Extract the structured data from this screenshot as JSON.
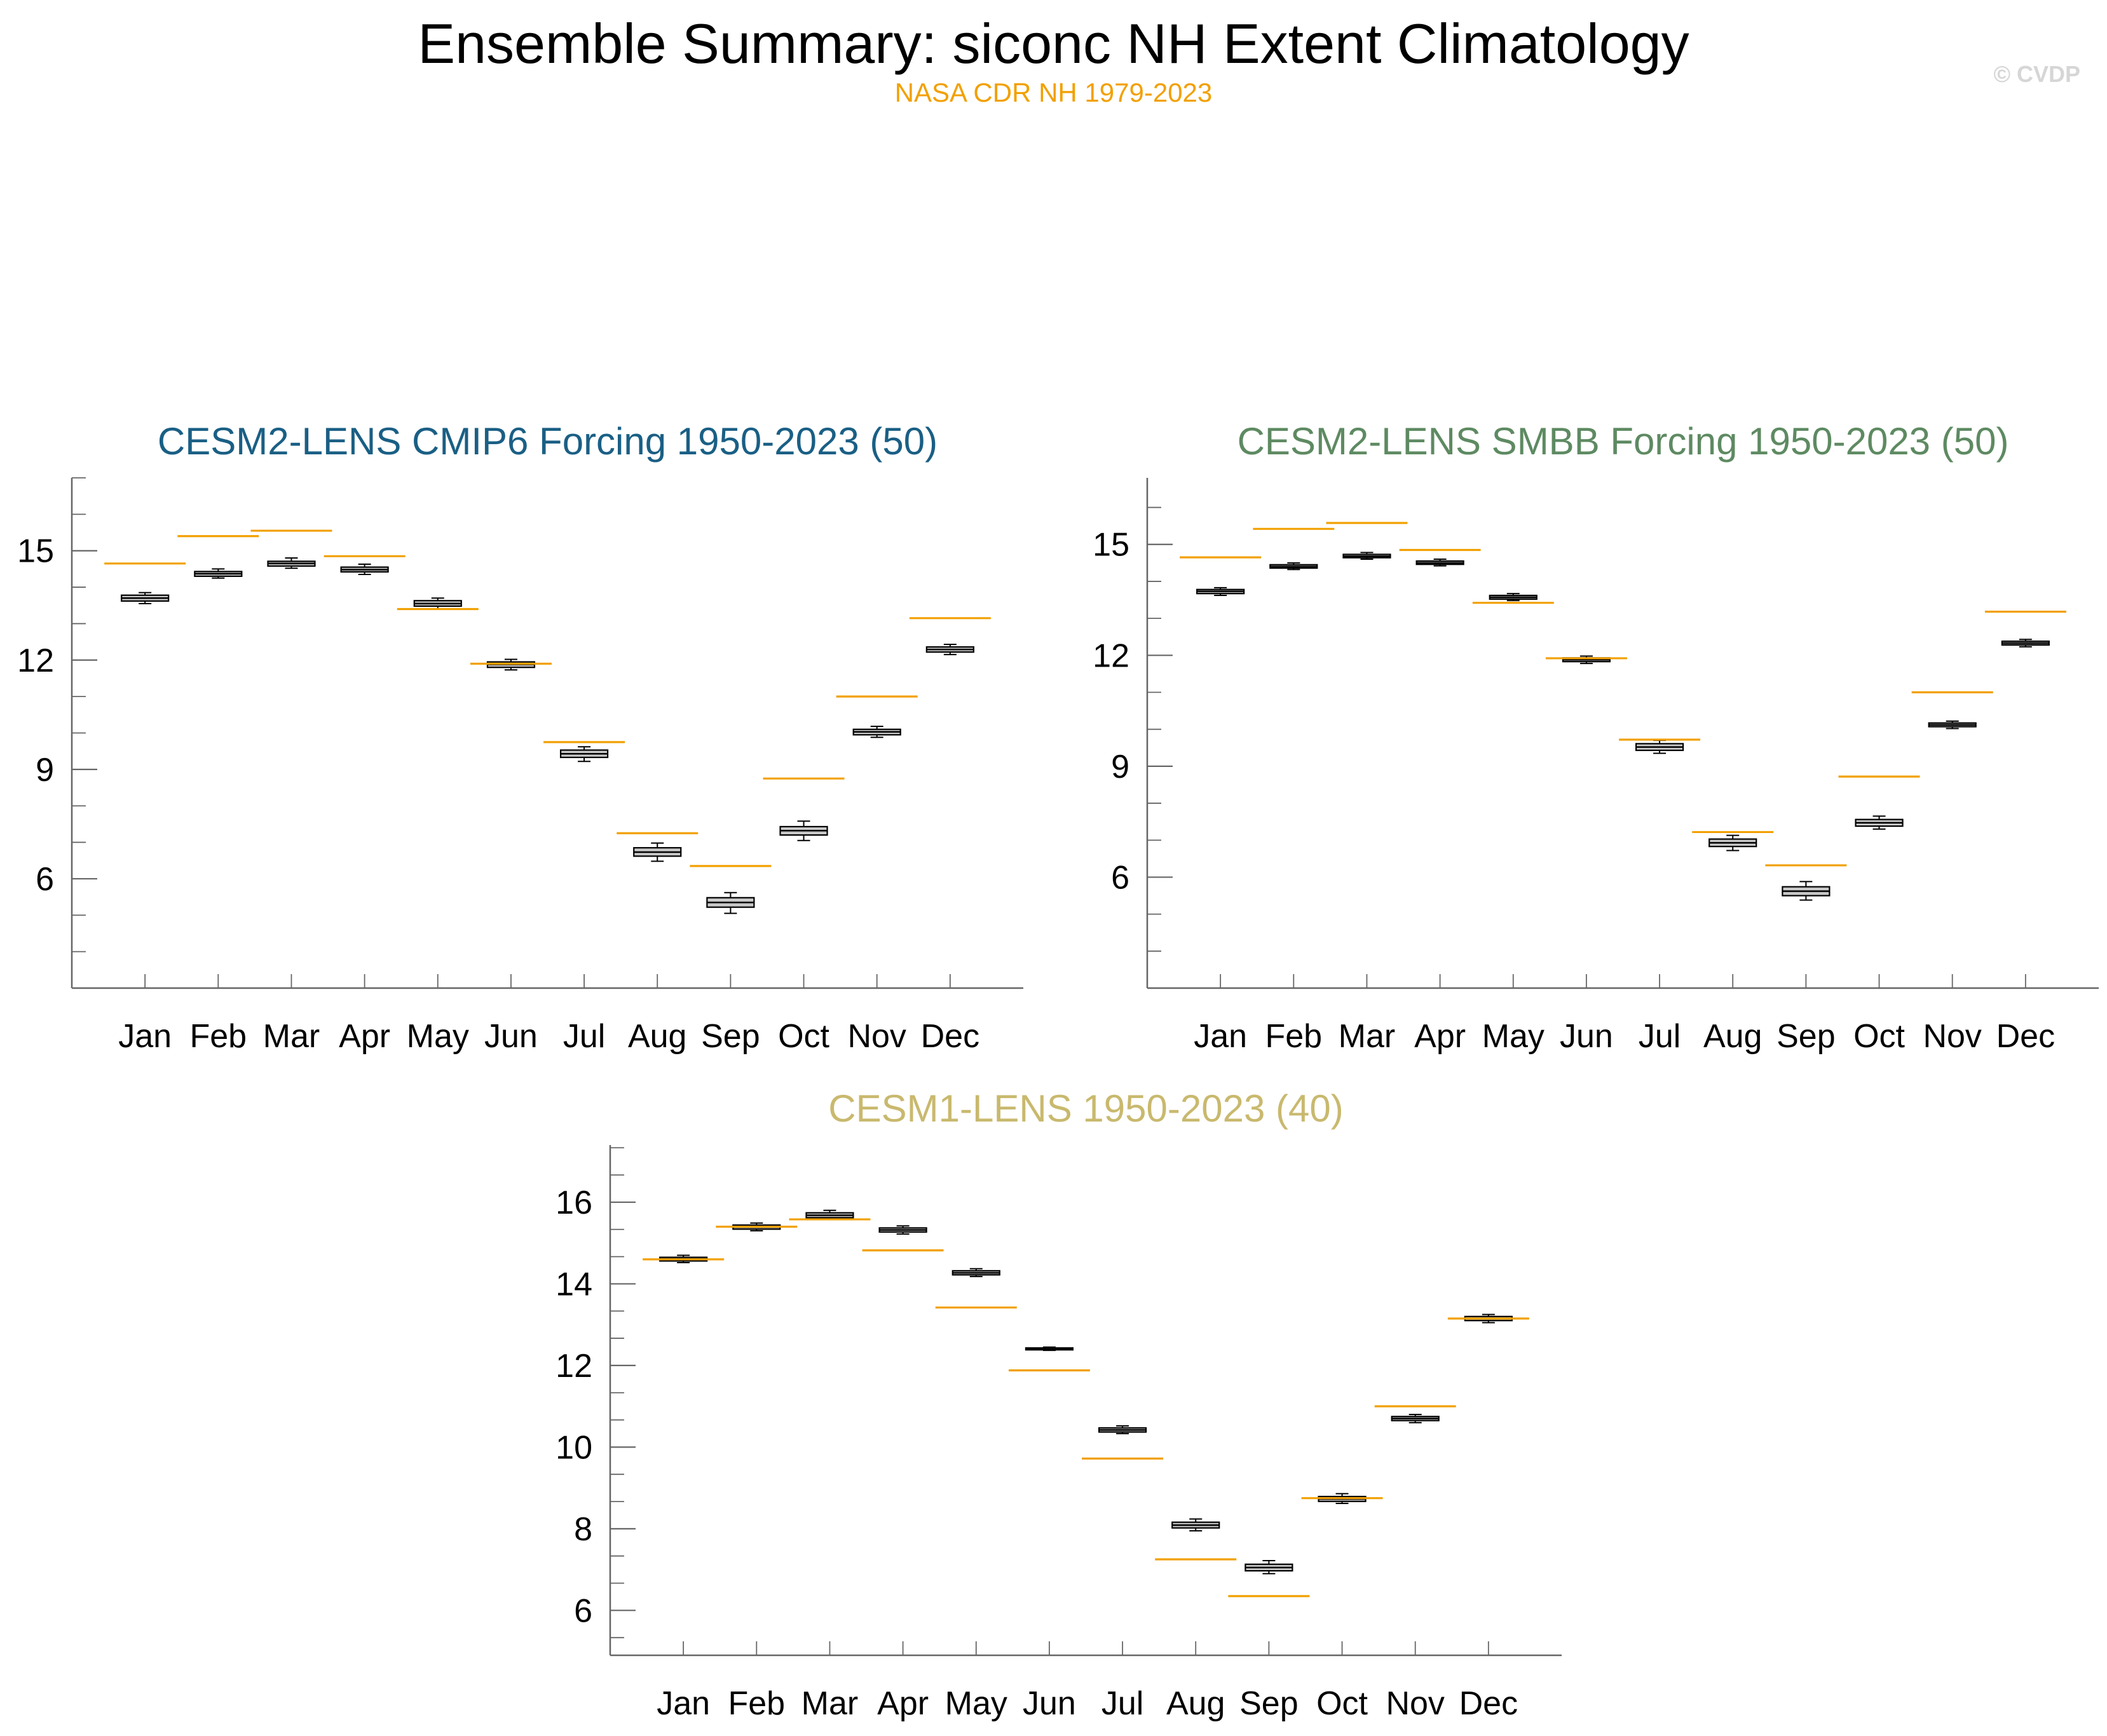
{
  "title": "Ensemble Summary: siconc NH Extent Climatology",
  "subtitle": "NASA CDR NH 1979-2023",
  "watermark": "© CVDP",
  "colors": {
    "reference": "#f2a000",
    "box_fill": "#c8c8c8",
    "axis": "#666666"
  },
  "chart_data": [
    {
      "type": "boxplot",
      "title": "CESM2-LENS CMIP6 Forcing 1950-2023 (50)",
      "title_color": "#1a5f85",
      "categories": [
        "Jan",
        "Feb",
        "Mar",
        "Apr",
        "May",
        "Jun",
        "Jul",
        "Aug",
        "Sep",
        "Oct",
        "Nov",
        "Dec"
      ],
      "y_ticks": [
        6,
        9,
        12,
        15
      ],
      "ylim": [
        3.0,
        17.0
      ],
      "reference_name": "NASA CDR NH 1979-2023",
      "reference": [
        14.65,
        15.4,
        15.55,
        14.85,
        13.4,
        11.9,
        9.75,
        7.25,
        6.35,
        8.75,
        11.0,
        13.15
      ],
      "boxes": [
        {
          "min": 13.55,
          "q1": 13.62,
          "median": 13.7,
          "q3": 13.78,
          "max": 13.85
        },
        {
          "min": 14.25,
          "q1": 14.3,
          "median": 14.37,
          "q3": 14.43,
          "max": 14.5
        },
        {
          "min": 14.52,
          "q1": 14.58,
          "median": 14.65,
          "q3": 14.71,
          "max": 14.8
        },
        {
          "min": 14.35,
          "q1": 14.42,
          "median": 14.48,
          "q3": 14.55,
          "max": 14.63
        },
        {
          "min": 13.4,
          "q1": 13.48,
          "median": 13.55,
          "q3": 13.63,
          "max": 13.7
        },
        {
          "min": 11.73,
          "q1": 11.8,
          "median": 11.88,
          "q3": 11.95,
          "max": 12.02
        },
        {
          "min": 9.22,
          "q1": 9.33,
          "median": 9.43,
          "q3": 9.53,
          "max": 9.62
        },
        {
          "min": 6.48,
          "q1": 6.62,
          "median": 6.73,
          "q3": 6.85,
          "max": 6.98
        },
        {
          "min": 5.05,
          "q1": 5.22,
          "median": 5.35,
          "q3": 5.48,
          "max": 5.62
        },
        {
          "min": 7.05,
          "q1": 7.2,
          "median": 7.32,
          "q3": 7.43,
          "max": 7.58
        },
        {
          "min": 9.88,
          "q1": 9.95,
          "median": 10.03,
          "q3": 10.1,
          "max": 10.18
        },
        {
          "min": 12.15,
          "q1": 12.22,
          "median": 12.29,
          "q3": 12.36,
          "max": 12.43
        }
      ]
    },
    {
      "type": "boxplot",
      "title": "CESM2-LENS SMBB Forcing 1950-2023 (50)",
      "title_color": "#5e8a62",
      "categories": [
        "Jan",
        "Feb",
        "Mar",
        "Apr",
        "May",
        "Jun",
        "Jul",
        "Aug",
        "Sep",
        "Oct",
        "Nov",
        "Dec"
      ],
      "y_ticks": [
        6,
        9,
        12,
        15
      ],
      "ylim": [
        3.0,
        16.8
      ],
      "reference_name": "NASA CDR NH 1979-2023",
      "reference": [
        14.65,
        15.42,
        15.58,
        14.85,
        13.42,
        11.92,
        9.72,
        7.22,
        6.32,
        8.72,
        11.0,
        13.18
      ],
      "boxes": [
        {
          "min": 13.62,
          "q1": 13.67,
          "median": 13.73,
          "q3": 13.78,
          "max": 13.83
        },
        {
          "min": 14.32,
          "q1": 14.36,
          "median": 14.4,
          "q3": 14.45,
          "max": 14.5
        },
        {
          "min": 14.6,
          "q1": 14.64,
          "median": 14.68,
          "q3": 14.73,
          "max": 14.78
        },
        {
          "min": 14.42,
          "q1": 14.46,
          "median": 14.5,
          "q3": 14.55,
          "max": 14.6
        },
        {
          "min": 13.48,
          "q1": 13.52,
          "median": 13.57,
          "q3": 13.62,
          "max": 13.67
        },
        {
          "min": 11.78,
          "q1": 11.83,
          "median": 11.88,
          "q3": 11.93,
          "max": 11.98
        },
        {
          "min": 9.35,
          "q1": 9.43,
          "median": 9.52,
          "q3": 9.61,
          "max": 9.7
        },
        {
          "min": 6.72,
          "q1": 6.83,
          "median": 6.93,
          "q3": 7.03,
          "max": 7.13
        },
        {
          "min": 5.38,
          "q1": 5.5,
          "median": 5.62,
          "q3": 5.74,
          "max": 5.88
        },
        {
          "min": 7.3,
          "q1": 7.38,
          "median": 7.47,
          "q3": 7.56,
          "max": 7.65
        },
        {
          "min": 10.02,
          "q1": 10.07,
          "median": 10.12,
          "q3": 10.17,
          "max": 10.22
        },
        {
          "min": 12.23,
          "q1": 12.28,
          "median": 12.33,
          "q3": 12.38,
          "max": 12.43
        }
      ]
    },
    {
      "type": "boxplot",
      "title": "CESM1-LENS 1950-2023 (40)",
      "title_color": "#c9b96e",
      "categories": [
        "Jan",
        "Feb",
        "Mar",
        "Apr",
        "May",
        "Jun",
        "Jul",
        "Aug",
        "Sep",
        "Oct",
        "Nov",
        "Dec"
      ],
      "y_ticks": [
        6,
        8,
        10,
        12,
        14,
        16
      ],
      "ylim": [
        4.9,
        17.4
      ],
      "reference_name": "NASA CDR NH 1979-2023",
      "reference": [
        14.6,
        15.4,
        15.58,
        14.82,
        13.42,
        11.88,
        9.72,
        7.25,
        6.35,
        8.75,
        11.0,
        13.15
      ],
      "boxes": [
        {
          "min": 14.52,
          "q1": 14.56,
          "median": 14.61,
          "q3": 14.65,
          "max": 14.7
        },
        {
          "min": 15.3,
          "q1": 15.34,
          "median": 15.39,
          "q3": 15.44,
          "max": 15.49
        },
        {
          "min": 15.57,
          "q1": 15.62,
          "median": 15.68,
          "q3": 15.74,
          "max": 15.8
        },
        {
          "min": 15.22,
          "q1": 15.27,
          "median": 15.32,
          "q3": 15.37,
          "max": 15.42
        },
        {
          "min": 14.18,
          "q1": 14.22,
          "median": 14.27,
          "q3": 14.32,
          "max": 14.37
        },
        {
          "min": 12.37,
          "q1": 12.39,
          "median": 12.41,
          "q3": 12.43,
          "max": 12.45
        },
        {
          "min": 10.33,
          "q1": 10.37,
          "median": 10.42,
          "q3": 10.47,
          "max": 10.52
        },
        {
          "min": 7.95,
          "q1": 8.02,
          "median": 8.09,
          "q3": 8.16,
          "max": 8.24
        },
        {
          "min": 6.9,
          "q1": 6.97,
          "median": 7.05,
          "q3": 7.13,
          "max": 7.22
        },
        {
          "min": 8.62,
          "q1": 8.67,
          "median": 8.73,
          "q3": 8.79,
          "max": 8.86
        },
        {
          "min": 10.6,
          "q1": 10.65,
          "median": 10.7,
          "q3": 10.75,
          "max": 10.8
        },
        {
          "min": 13.05,
          "q1": 13.1,
          "median": 13.15,
          "q3": 13.2,
          "max": 13.25
        }
      ]
    }
  ]
}
